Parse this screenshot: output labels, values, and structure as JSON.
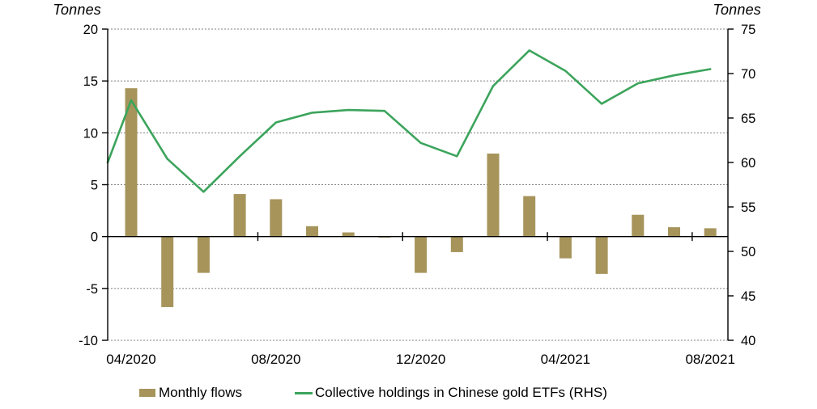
{
  "legend": [
    {
      "label": "Monthly flows",
      "type": "bar",
      "color": "#A6945B"
    },
    {
      "label": "Collective holdings in Chinese gold ETFs (RHS)",
      "type": "line",
      "color": "#3CA45C"
    }
  ],
  "chart_data": {
    "type": "bar+line combo",
    "categories": [
      "04/2020",
      "05/2020",
      "06/2020",
      "07/2020",
      "08/2020",
      "09/2020",
      "10/2020",
      "11/2020",
      "12/2020",
      "01/2021",
      "02/2021",
      "03/2021",
      "04/2021",
      "05/2021",
      "06/2021",
      "07/2021",
      "08/2021"
    ],
    "x_tick_labels": [
      "04/2020",
      "08/2020",
      "12/2020",
      "04/2021",
      "08/2021"
    ],
    "x_label_category_indices": [
      0,
      4,
      8,
      12,
      16
    ],
    "series": [
      {
        "name": "Monthly flows",
        "type": "bar",
        "axis": "left",
        "color": "#A6945B",
        "values": [
          14.3,
          -6.8,
          -3.5,
          4.1,
          3.6,
          1.0,
          0.4,
          -0.1,
          -3.5,
          -1.5,
          8.0,
          3.9,
          -2.1,
          -3.6,
          2.1,
          0.9,
          0.8
        ]
      },
      {
        "name": "Collective holdings in Chinese gold ETFs (RHS)",
        "type": "line",
        "axis": "right",
        "color": "#3CA45C",
        "edge_start_value": 60.0,
        "values": [
          67.0,
          60.4,
          56.7,
          60.7,
          64.5,
          65.6,
          65.9,
          65.8,
          62.2,
          60.7,
          68.6,
          72.6,
          70.3,
          66.6,
          68.9,
          69.8,
          70.5
        ]
      }
    ],
    "left_axis": {
      "title": "Tonnes",
      "min": -10,
      "max": 20,
      "ticks": [
        20,
        15,
        10,
        5,
        0,
        -5,
        -10
      ]
    },
    "right_axis": {
      "title": "Tonnes",
      "min": 40,
      "max": 75,
      "ticks": [
        75,
        70,
        65,
        60,
        55,
        50,
        45,
        40
      ]
    },
    "grid": "horizontal dashed gridlines every 5 tonnes (left scale), solid zero line",
    "gridline_color": "#808080",
    "axis_color": "#000000",
    "legend_position": "bottom"
  }
}
